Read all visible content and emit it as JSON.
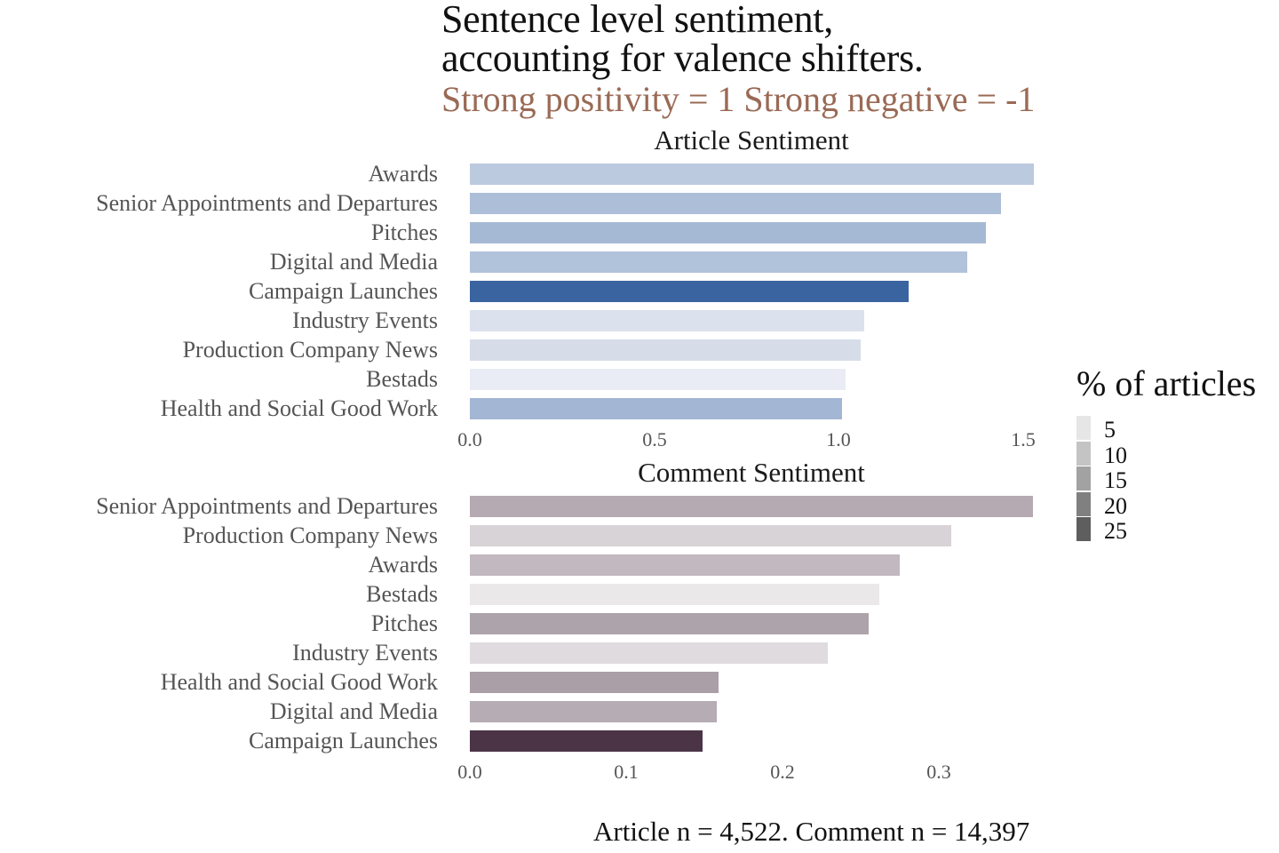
{
  "header": {
    "title_line1": "Sentence level sentiment,",
    "title_line2": "accounting for valence shifters.",
    "subtitle": "Strong positivity = 1 Strong negative = -1"
  },
  "caption": "Article n = 4,522. Comment n = 14,397",
  "legend": {
    "title": "% of articles",
    "items": [
      {
        "label": "5",
        "color": "#e6e6e6"
      },
      {
        "label": "10",
        "color": "#c4c4c4"
      },
      {
        "label": "15",
        "color": "#a2a2a2"
      },
      {
        "label": "20",
        "color": "#808080"
      },
      {
        "label": "25",
        "color": "#5e5e5e"
      }
    ]
  },
  "chart_data": [
    {
      "type": "bar",
      "orientation": "horizontal",
      "title": "Article Sentiment",
      "categories": [
        "Awards",
        "Senior Appointments and Departures",
        "Pitches",
        "Digital and Media",
        "Campaign Launches",
        "Industry Events",
        "Production Company News",
        "Bestads",
        "Health and Social Good Work"
      ],
      "values": [
        1.53,
        1.44,
        1.4,
        1.35,
        1.19,
        1.07,
        1.06,
        1.02,
        1.01
      ],
      "colors": [
        "#bccadf",
        "#adbed8",
        "#a6b9d4",
        "#b1c2db",
        "#3a64a0",
        "#dbe1ed",
        "#d6dde9",
        "#e9ecf4",
        "#a3b6d3"
      ],
      "xlabel": "",
      "ylabel": "",
      "xlim": [
        0,
        1.55
      ],
      "x_ticks": [
        "0.0",
        "0.5",
        "1.0",
        "1.5"
      ],
      "grid": false,
      "fill_legend": "% of articles"
    },
    {
      "type": "bar",
      "orientation": "horizontal",
      "title": "Comment Sentiment",
      "categories": [
        "Senior Appointments and Departures",
        "Production Company News",
        "Awards",
        "Bestads",
        "Pitches",
        "Industry Events",
        "Health and Social Good Work",
        "Digital and Media",
        "Campaign Launches"
      ],
      "values": [
        0.36,
        0.308,
        0.275,
        0.262,
        0.255,
        0.229,
        0.159,
        0.158,
        0.149
      ],
      "colors": [
        "#b5aab2",
        "#d8d3d7",
        "#c2b8bf",
        "#eae8e9",
        "#ada3ab",
        "#dfdbde",
        "#aa9ea7",
        "#b6acb3",
        "#4b3446"
      ],
      "xlabel": "",
      "ylabel": "",
      "xlim": [
        0,
        0.365
      ],
      "x_ticks": [
        "0.0",
        "0.1",
        "0.2",
        "0.3"
      ],
      "grid": false,
      "fill_legend": "% of articles"
    }
  ]
}
